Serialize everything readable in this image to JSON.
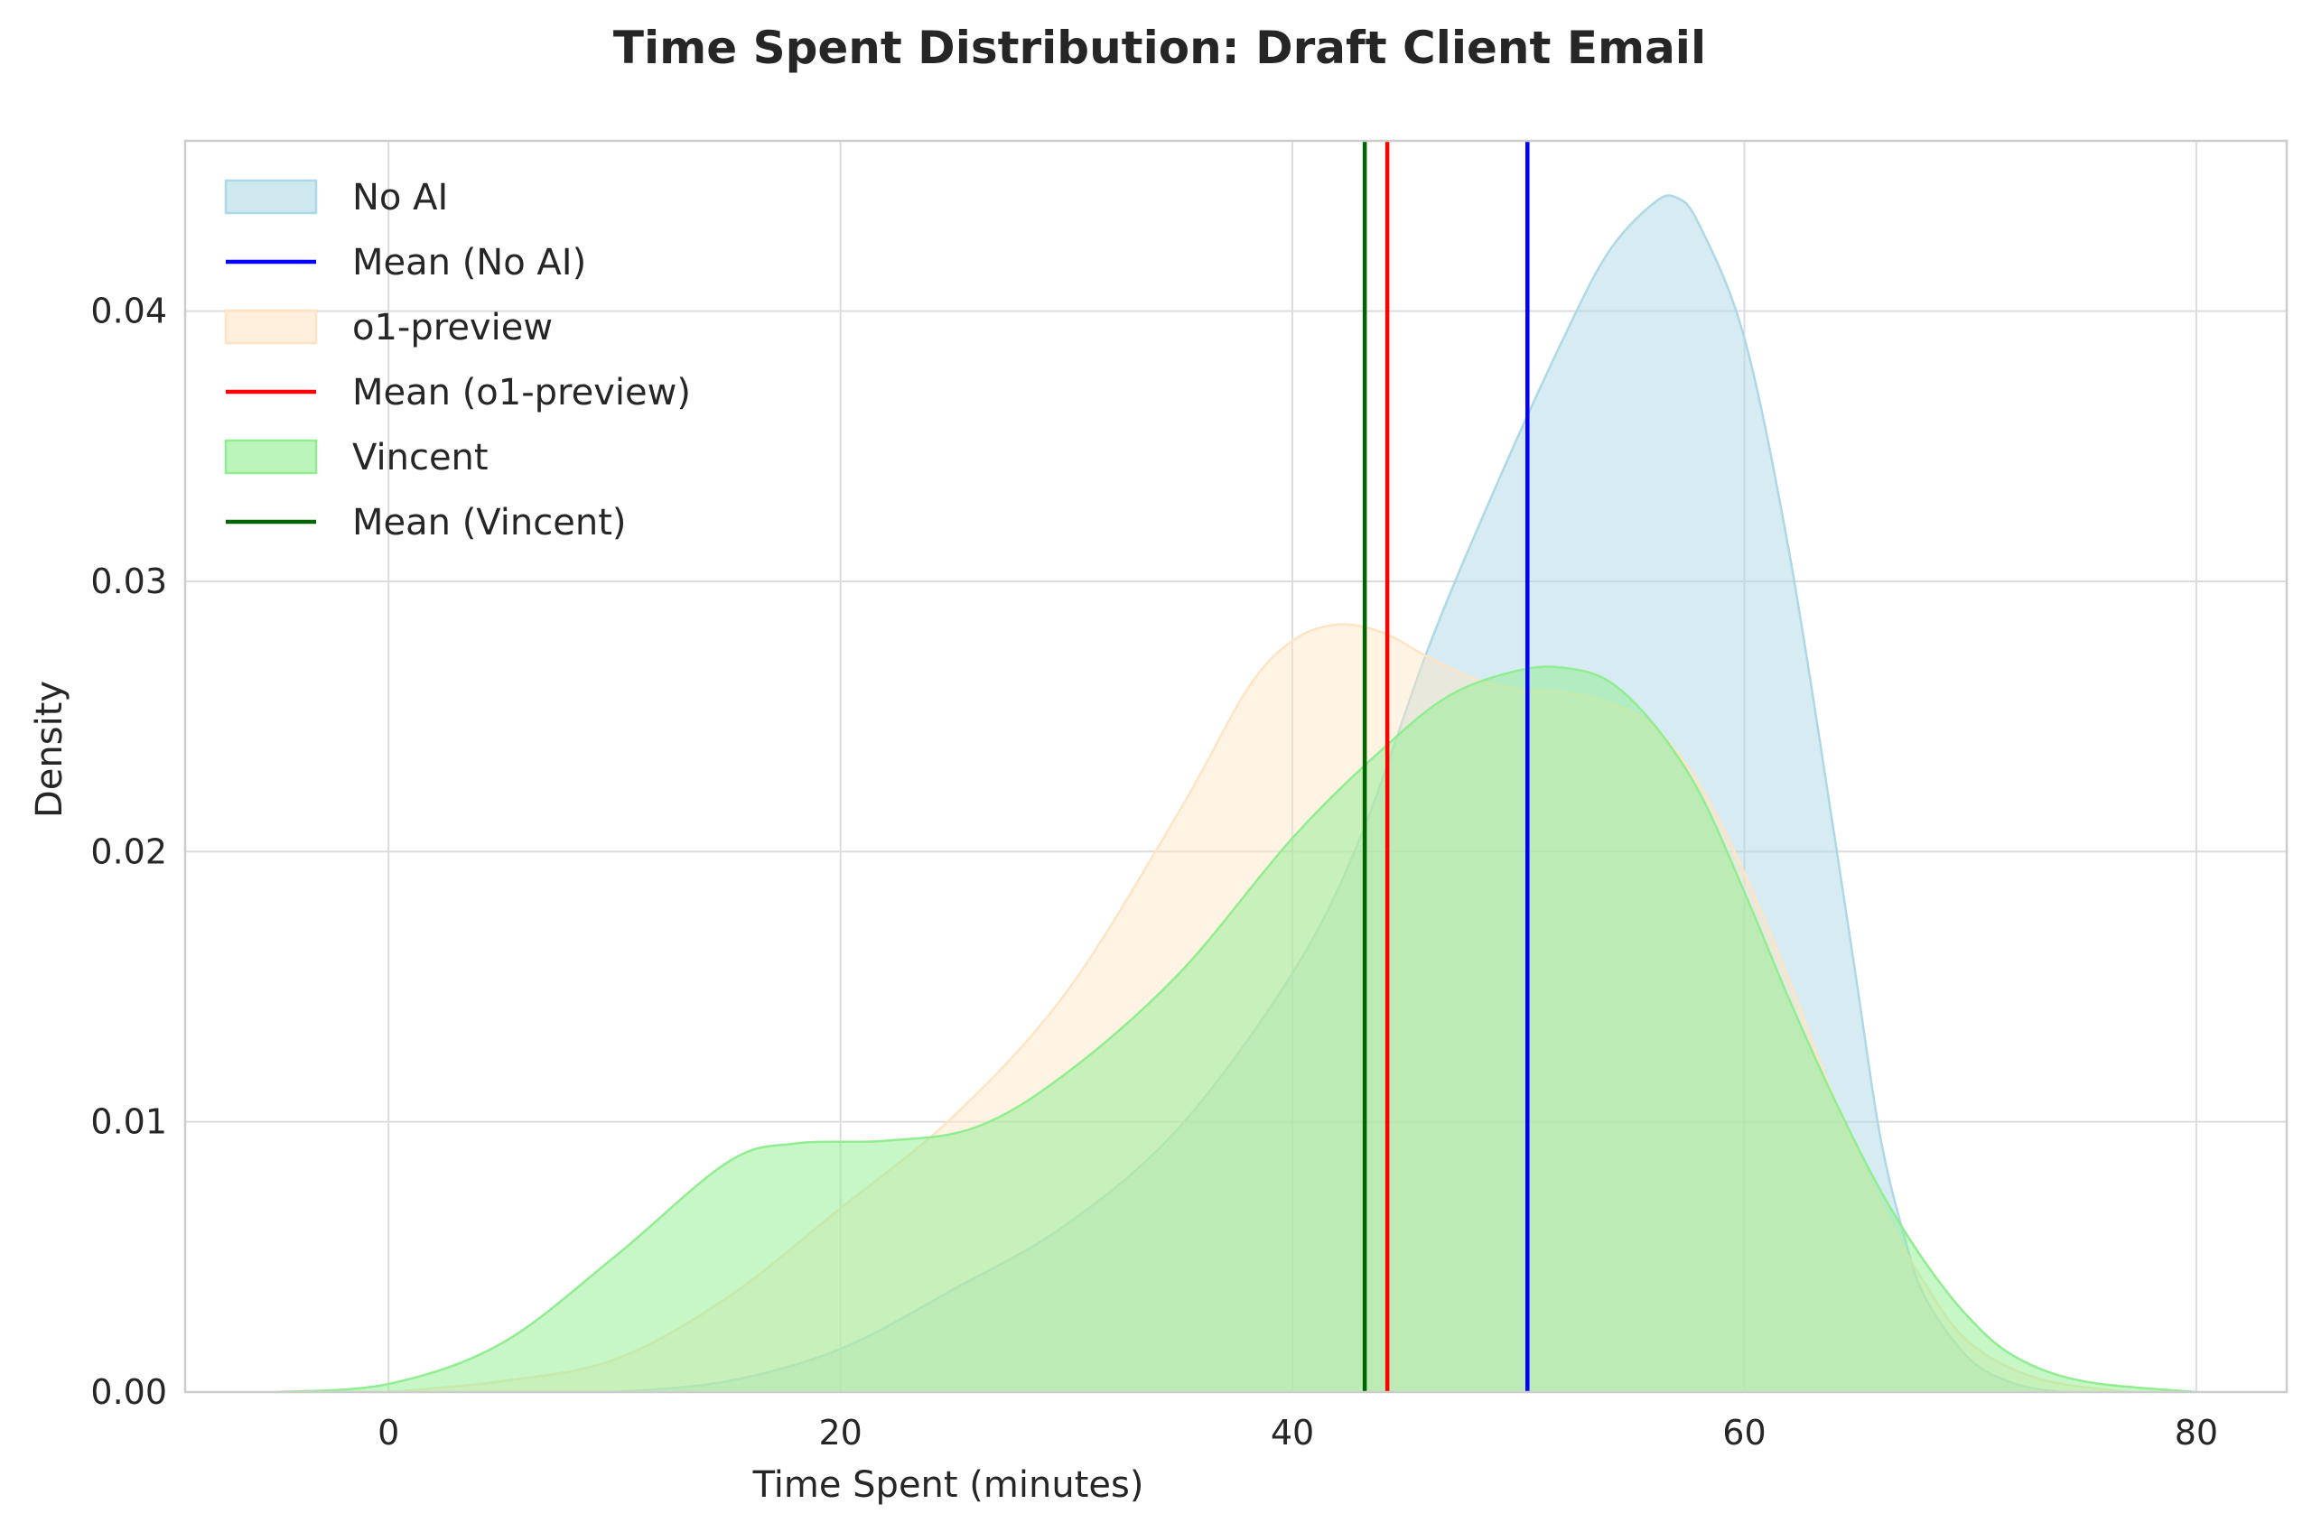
{
  "chart_data": {
    "type": "area",
    "title": "Time Spent Distribution: Draft Client Email",
    "xlabel": "Time Spent (minutes)",
    "ylabel": "Density",
    "xlim": [
      -9,
      84
    ],
    "ylim": [
      0,
      0.0463
    ],
    "x_ticks": [
      0,
      20,
      40,
      60,
      80
    ],
    "x_tick_labels": [
      "0",
      "20",
      "40",
      "60",
      "80"
    ],
    "y_ticks": [
      0.0,
      0.01,
      0.02,
      0.03,
      0.04
    ],
    "y_tick_labels": [
      "0.00",
      "0.01",
      "0.02",
      "0.03",
      "0.04"
    ],
    "grid": true,
    "legend": "upper-left",
    "series": [
      {
        "name": "No AI",
        "kind": "density",
        "fill": "#add8e6",
        "fill_opacity": 0.5,
        "stroke": "#add8e6",
        "points": [
          [
            10,
            0.0
          ],
          [
            15,
            0.0004
          ],
          [
            20,
            0.0016
          ],
          [
            25,
            0.0038
          ],
          [
            30,
            0.0062
          ],
          [
            35,
            0.0098
          ],
          [
            40,
            0.0155
          ],
          [
            43,
            0.0205
          ],
          [
            46,
            0.0275
          ],
          [
            49,
            0.0335
          ],
          [
            52,
            0.039
          ],
          [
            54,
            0.0422
          ],
          [
            56,
            0.044
          ],
          [
            57,
            0.0442
          ],
          [
            58,
            0.0432
          ],
          [
            60,
            0.039
          ],
          [
            62,
            0.031
          ],
          [
            64,
            0.0205
          ],
          [
            65,
            0.015
          ],
          [
            66,
            0.0095
          ],
          [
            67,
            0.006
          ],
          [
            68,
            0.0035
          ],
          [
            70,
            0.0012
          ],
          [
            72,
            0.0003
          ],
          [
            74,
            0.0
          ]
        ]
      },
      {
        "name": "o1-preview",
        "kind": "density",
        "fill": "#ffe4c4",
        "fill_opacity": 0.45,
        "stroke": "#ffe4c4",
        "points": [
          [
            0,
            0.0
          ],
          [
            5,
            0.0004
          ],
          [
            10,
            0.0012
          ],
          [
            15,
            0.0035
          ],
          [
            20,
            0.0068
          ],
          [
            25,
            0.0102
          ],
          [
            30,
            0.0148
          ],
          [
            35,
            0.0215
          ],
          [
            38,
            0.026
          ],
          [
            40,
            0.0278
          ],
          [
            42,
            0.0284
          ],
          [
            44,
            0.0281
          ],
          [
            46,
            0.0272
          ],
          [
            48,
            0.0264
          ],
          [
            50,
            0.026
          ],
          [
            52,
            0.0259
          ],
          [
            54,
            0.0255
          ],
          [
            56,
            0.0246
          ],
          [
            58,
            0.0225
          ],
          [
            60,
            0.0192
          ],
          [
            62,
            0.0152
          ],
          [
            64,
            0.0108
          ],
          [
            66,
            0.007
          ],
          [
            68,
            0.004
          ],
          [
            70,
            0.0018
          ],
          [
            73,
            0.0005
          ],
          [
            77,
            0.0
          ]
        ]
      },
      {
        "name": "Vincent",
        "kind": "density",
        "fill": "#90ee90",
        "fill_opacity": 0.5,
        "stroke": "#90ee90",
        "points": [
          [
            -5,
            0.0
          ],
          [
            0,
            0.0003
          ],
          [
            5,
            0.0018
          ],
          [
            10,
            0.005
          ],
          [
            15,
            0.0085
          ],
          [
            18,
            0.0092
          ],
          [
            22,
            0.0093
          ],
          [
            26,
            0.0098
          ],
          [
            30,
            0.0118
          ],
          [
            35,
            0.0155
          ],
          [
            40,
            0.0205
          ],
          [
            44,
            0.0238
          ],
          [
            47,
            0.0258
          ],
          [
            50,
            0.0267
          ],
          [
            52,
            0.0268
          ],
          [
            54,
            0.0263
          ],
          [
            56,
            0.0247
          ],
          [
            58,
            0.0222
          ],
          [
            60,
            0.0185
          ],
          [
            62,
            0.0145
          ],
          [
            64,
            0.0108
          ],
          [
            66,
            0.0075
          ],
          [
            68,
            0.0048
          ],
          [
            70,
            0.0027
          ],
          [
            72,
            0.0013
          ],
          [
            75,
            0.0004
          ],
          [
            80,
            0.0
          ]
        ]
      },
      {
        "name": "Mean (No AI)",
        "kind": "vline",
        "x": 50.4,
        "color": "#0000ff"
      },
      {
        "name": "Mean (o1-preview)",
        "kind": "vline",
        "x": 44.2,
        "color": "#ff0000"
      },
      {
        "name": "Mean (Vincent)",
        "kind": "vline",
        "x": 43.2,
        "color": "#006400"
      }
    ],
    "legend_entries": [
      {
        "label": "No AI",
        "kind": "patch",
        "fill": "#add8e6",
        "stroke": "#add8e6"
      },
      {
        "label": "Mean (No AI)",
        "kind": "line",
        "color": "#0000ff"
      },
      {
        "label": "o1-preview",
        "kind": "patch",
        "fill": "#ffe4c4",
        "stroke": "#ffe4c4"
      },
      {
        "label": "Mean (o1-preview)",
        "kind": "line",
        "color": "#ff0000"
      },
      {
        "label": "Vincent",
        "kind": "patch",
        "fill": "#90ee90",
        "stroke": "#90ee90"
      },
      {
        "label": "Mean (Vincent)",
        "kind": "line",
        "color": "#006400"
      }
    ]
  }
}
